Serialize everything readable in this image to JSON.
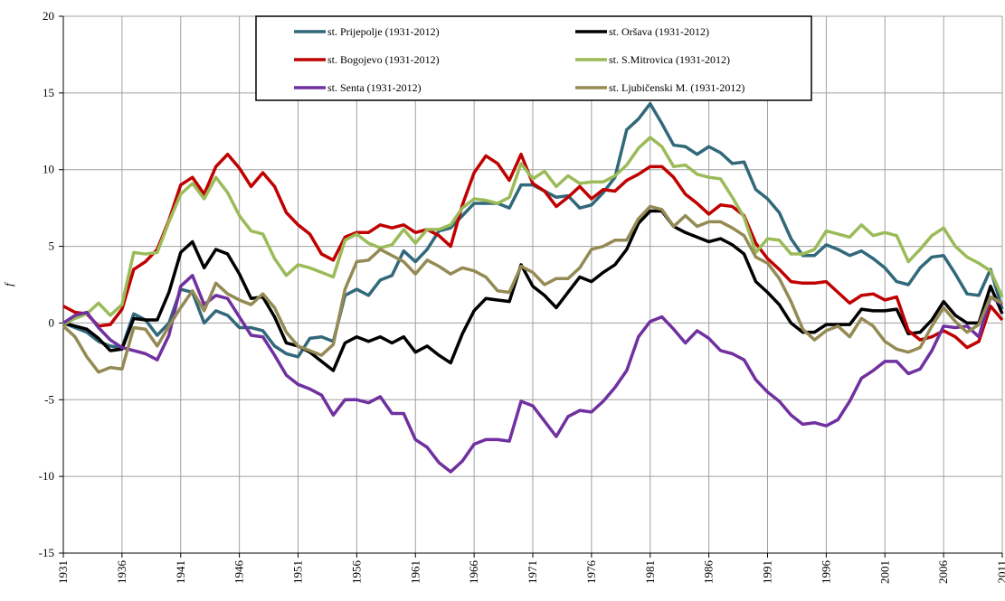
{
  "chart_data": {
    "type": "line",
    "ylabel": "f",
    "x": [
      1931,
      1932,
      1933,
      1934,
      1935,
      1936,
      1937,
      1938,
      1939,
      1940,
      1941,
      1942,
      1943,
      1944,
      1945,
      1946,
      1947,
      1948,
      1949,
      1950,
      1951,
      1952,
      1953,
      1954,
      1955,
      1956,
      1957,
      1958,
      1959,
      1960,
      1961,
      1962,
      1963,
      1964,
      1965,
      1966,
      1967,
      1968,
      1969,
      1970,
      1971,
      1972,
      1973,
      1974,
      1975,
      1976,
      1977,
      1978,
      1979,
      1980,
      1981,
      1982,
      1983,
      1984,
      1985,
      1986,
      1987,
      1988,
      1989,
      1990,
      1991,
      1992,
      1993,
      1994,
      1995,
      1996,
      1997,
      1998,
      1999,
      2000,
      2001,
      2002,
      2003,
      2004,
      2005,
      2006,
      2007,
      2008,
      2009,
      2010,
      2011
    ],
    "xlim": [
      1931,
      2011
    ],
    "xticks": [
      1931,
      1936,
      1941,
      1946,
      1951,
      1956,
      1961,
      1966,
      1971,
      1976,
      1981,
      1986,
      1991,
      1996,
      2001,
      2006,
      2011
    ],
    "ylim": [
      -15,
      20
    ],
    "yticks": [
      -15,
      -10,
      -5,
      0,
      5,
      10,
      15,
      20
    ],
    "grid": true,
    "legend": "top",
    "series": [
      {
        "name": "st. Prijepolje (1931-2012)",
        "color": "#31687a",
        "values": [
          0,
          -0.3,
          -0.6,
          -1.2,
          -1.5,
          -1.6,
          0.6,
          0.2,
          -0.8,
          0,
          2.2,
          2.0,
          0,
          0.8,
          0.5,
          -0.3,
          -0.3,
          -0.5,
          -1.5,
          -2.0,
          -2.2,
          -1.0,
          -0.9,
          -1.2,
          1.8,
          2.2,
          1.8,
          2.8,
          3.1,
          4.7,
          4.0,
          4.8,
          6.0,
          6.2,
          7.0,
          7.8,
          7.8,
          7.8,
          7.5,
          9.0,
          9.0,
          8.6,
          8.2,
          8.3,
          7.5,
          7.7,
          8.5,
          9.5,
          12.6,
          13.3,
          14.3,
          13.0,
          11.6,
          11.5,
          11.0,
          11.5,
          11.1,
          10.4,
          10.5,
          8.7,
          8.1,
          7.2,
          5.5,
          4.4,
          4.4,
          5.1,
          4.8,
          4.4,
          4.7,
          4.2,
          3.6,
          2.7,
          2.5,
          3.6,
          4.3,
          4.4,
          3.2,
          1.9,
          1.8,
          3.5,
          0.9
        ]
      },
      {
        "name": "st. Oršava (1931-2012)",
        "color": "#000000",
        "values": [
          0,
          -0.2,
          -0.4,
          -1.0,
          -1.8,
          -1.7,
          0.3,
          0.2,
          0.2,
          2.0,
          4.6,
          5.3,
          3.6,
          4.8,
          4.5,
          3.2,
          1.6,
          1.7,
          0.4,
          -1.3,
          -1.5,
          -1.9,
          -2.5,
          -3.1,
          -1.3,
          -0.9,
          -1.2,
          -0.9,
          -1.3,
          -0.9,
          -1.9,
          -1.5,
          -2.1,
          -2.6,
          -0.7,
          0.8,
          1.6,
          1.5,
          1.4,
          3.8,
          2.4,
          1.8,
          1.0,
          2.0,
          3.0,
          2.7,
          3.3,
          3.8,
          4.8,
          6.5,
          7.3,
          7.3,
          6.3,
          5.9,
          5.6,
          5.3,
          5.5,
          5.1,
          4.5,
          2.7,
          2.0,
          1.2,
          0,
          -0.6,
          -0.6,
          -0.1,
          -0.1,
          -0.1,
          0.9,
          0.8,
          0.8,
          0.9,
          -0.7,
          -0.6,
          0.2,
          1.4,
          0.5,
          0,
          0,
          2.4,
          0.6
        ]
      },
      {
        "name": "st. Bogojevo (1931-2012)",
        "color": "#c00000",
        "values": [
          1.1,
          0.7,
          0.6,
          -0.2,
          -0.1,
          0.9,
          3.5,
          4.0,
          4.8,
          6.7,
          9.0,
          9.5,
          8.4,
          10.2,
          11.0,
          10.1,
          8.9,
          9.8,
          8.9,
          7.2,
          6.4,
          5.8,
          4.5,
          4.1,
          5.6,
          5.9,
          5.9,
          6.4,
          6.2,
          6.4,
          5.9,
          6.1,
          5.7,
          5.0,
          7.7,
          9.8,
          10.9,
          10.4,
          9.3,
          11.0,
          9.1,
          8.6,
          7.6,
          8.2,
          8.9,
          8.1,
          8.7,
          8.6,
          9.3,
          9.7,
          10.2,
          10.2,
          9.5,
          8.4,
          7.8,
          7.1,
          7.7,
          7.6,
          7.0,
          5.2,
          4.2,
          3.5,
          2.7,
          2.6,
          2.6,
          2.7,
          2.0,
          1.3,
          1.8,
          1.9,
          1.5,
          1.7,
          -0.5,
          -1.1,
          -0.9,
          -0.5,
          -0.9,
          -1.6,
          -1.2,
          1.1,
          0.2
        ]
      },
      {
        "name": "st. S.Mitrovica (1931-2012)",
        "color": "#9bbb59",
        "values": [
          -0.1,
          0.3,
          0.6,
          1.3,
          0.5,
          1.2,
          4.6,
          4.5,
          4.6,
          6.6,
          8.4,
          9.1,
          8.1,
          9.5,
          8.5,
          7.0,
          6.0,
          5.8,
          4.2,
          3.1,
          3.8,
          3.6,
          3.3,
          3.0,
          5.4,
          5.8,
          5.2,
          4.9,
          5.1,
          6.1,
          5.2,
          6.1,
          6.1,
          6.4,
          7.5,
          8.1,
          8.0,
          7.8,
          8.2,
          10.4,
          9.4,
          9.9,
          8.9,
          9.6,
          9.1,
          9.2,
          9.2,
          9.6,
          10.3,
          11.4,
          12.1,
          11.5,
          10.2,
          10.3,
          9.7,
          9.5,
          9.4,
          8.2,
          6.9,
          4.6,
          5.5,
          5.4,
          4.5,
          4.5,
          4.8,
          6.0,
          5.8,
          5.6,
          6.4,
          5.7,
          5.9,
          5.7,
          4.0,
          4.8,
          5.7,
          6.2,
          5.0,
          4.3,
          3.9,
          3.4,
          1.7
        ]
      },
      {
        "name": "st. Senta (1931-2012)",
        "color": "#7030a0",
        "values": [
          0,
          0.5,
          0.7,
          -0.3,
          -1.1,
          -1.6,
          -1.8,
          -2.0,
          -2.4,
          -0.8,
          2.4,
          3.1,
          1.2,
          1.8,
          1.6,
          0.4,
          -0.8,
          -0.9,
          -2.1,
          -3.4,
          -4.0,
          -4.3,
          -4.7,
          -6.0,
          -5.0,
          -5.0,
          -5.2,
          -4.8,
          -5.9,
          -5.9,
          -7.6,
          -8.1,
          -9.1,
          -9.7,
          -9.0,
          -7.9,
          -7.6,
          -7.6,
          -7.7,
          -5.1,
          -5.4,
          -6.4,
          -7.4,
          -6.1,
          -5.7,
          -5.8,
          -5.1,
          -4.2,
          -3.1,
          -0.9,
          0.1,
          0.4,
          -0.4,
          -1.3,
          -0.5,
          -1.0,
          -1.8,
          -2.0,
          -2.4,
          -3.7,
          -4.5,
          -5.1,
          -6.0,
          -6.6,
          -6.5,
          -6.7,
          -6.3,
          -5.1,
          -3.6,
          -3.1,
          -2.5,
          -2.5,
          -3.3,
          -3.0,
          -1.8,
          -0.2,
          -0.3,
          -0.2,
          -0.9,
          1.7,
          1.2
        ]
      },
      {
        "name": "st. Ljubičenski M. (1931-2012)",
        "color": "#948a54",
        "values": [
          -0.2,
          -0.9,
          -2.2,
          -3.2,
          -2.9,
          -3.0,
          -0.3,
          -0.4,
          -1.5,
          -0.2,
          1.0,
          2.1,
          0.8,
          2.6,
          1.9,
          1.5,
          1.2,
          1.9,
          1.0,
          -0.6,
          -1.5,
          -1.8,
          -2.1,
          -1.4,
          2.2,
          4.0,
          4.1,
          4.8,
          4.4,
          4.0,
          3.2,
          4.1,
          3.7,
          3.2,
          3.6,
          3.4,
          3.0,
          2.1,
          2.0,
          3.7,
          3.3,
          2.5,
          2.9,
          2.9,
          3.6,
          4.8,
          5.0,
          5.4,
          5.4,
          6.8,
          7.6,
          7.4,
          6.3,
          7.0,
          6.3,
          6.6,
          6.6,
          6.2,
          5.7,
          4.3,
          3.9,
          2.9,
          1.4,
          -0.4,
          -1.1,
          -0.5,
          -0.2,
          -0.9,
          0.3,
          -0.2,
          -1.2,
          -1.7,
          -1.9,
          -1.6,
          -0.2,
          1.0,
          0.1,
          -0.6,
          -0.1,
          1.7,
          1.3
        ]
      }
    ]
  }
}
